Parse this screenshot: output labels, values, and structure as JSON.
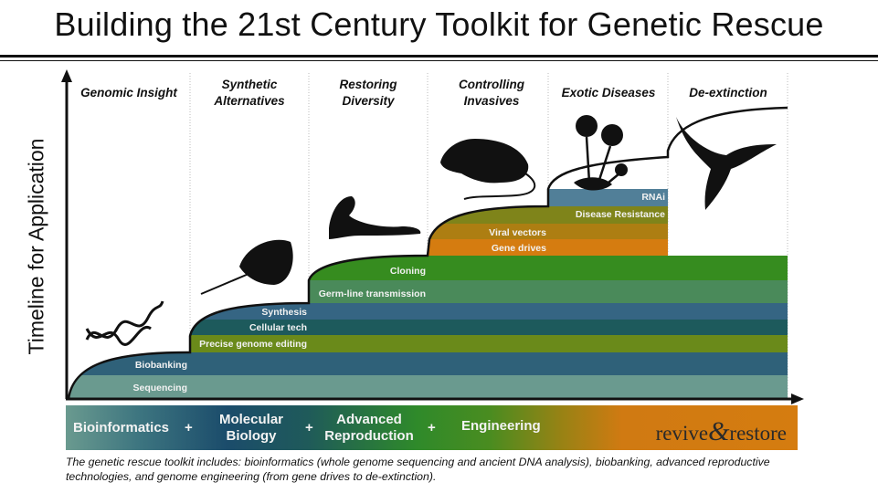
{
  "title": "Building the 21st Century Toolkit for Genetic Rescue",
  "y_axis_label": "Timeline for Application",
  "columns": [
    "Genomic Insight",
    "Synthetic Alternatives",
    "Restoring Diversity",
    "Controlling Invasives",
    "Exotic Diseases",
    "De-extinction"
  ],
  "column_lines": [
    [
      "Genomic Insight"
    ],
    [
      "Synthetic",
      "Alternatives"
    ],
    [
      "Restoring",
      "Diversity"
    ],
    [
      "Controlling",
      "Invasives"
    ],
    [
      "Exotic Diseases"
    ],
    [
      "De-extinction"
    ]
  ],
  "bands": [
    {
      "label": "Sequencing",
      "color": "#6a9a8f"
    },
    {
      "label": "Biobanking",
      "color": "#2f6179"
    },
    {
      "label": "Precise genome editing",
      "color": "#6a8a1a"
    },
    {
      "label": "Cellular tech",
      "color": "#1d5a5c"
    },
    {
      "label": "Synthesis",
      "color": "#356583"
    },
    {
      "label": "Germ-line transmission",
      "color": "#4a8a5a"
    },
    {
      "label": "Cloning",
      "color": "#368c1f"
    },
    {
      "label": "Gene drives",
      "color": "#d57c10"
    },
    {
      "label": "Viral vectors",
      "color": "#ad7e12"
    },
    {
      "label": "Disease Resistance",
      "color": "#7f841a"
    },
    {
      "label": "RNAi",
      "color": "#517f98"
    }
  ],
  "icons": [
    "dna-helix-icon",
    "horseshoe-crab-icon",
    "ferret-icon",
    "rat-icon",
    "flower-icon",
    "pigeon-icon"
  ],
  "strip": {
    "items": [
      "Bioinformatics",
      "Molecular Biology",
      "Advanced Reproduction",
      "Engineering"
    ],
    "item_lines": [
      [
        "Bioinformatics"
      ],
      [
        "Molecular",
        "Biology"
      ],
      [
        "Advanced",
        "Reproduction"
      ],
      [
        "Engineering"
      ]
    ],
    "plus": "+",
    "logo": {
      "left": "revive",
      "amp": "&",
      "right": "restore"
    }
  },
  "caption": "The genetic rescue toolkit includes: bioinformatics (whole genome sequencing and ancient DNA analysis), biobanking, advanced reproductive technologies, and genome engineering (from gene drives to de-extinction)."
}
